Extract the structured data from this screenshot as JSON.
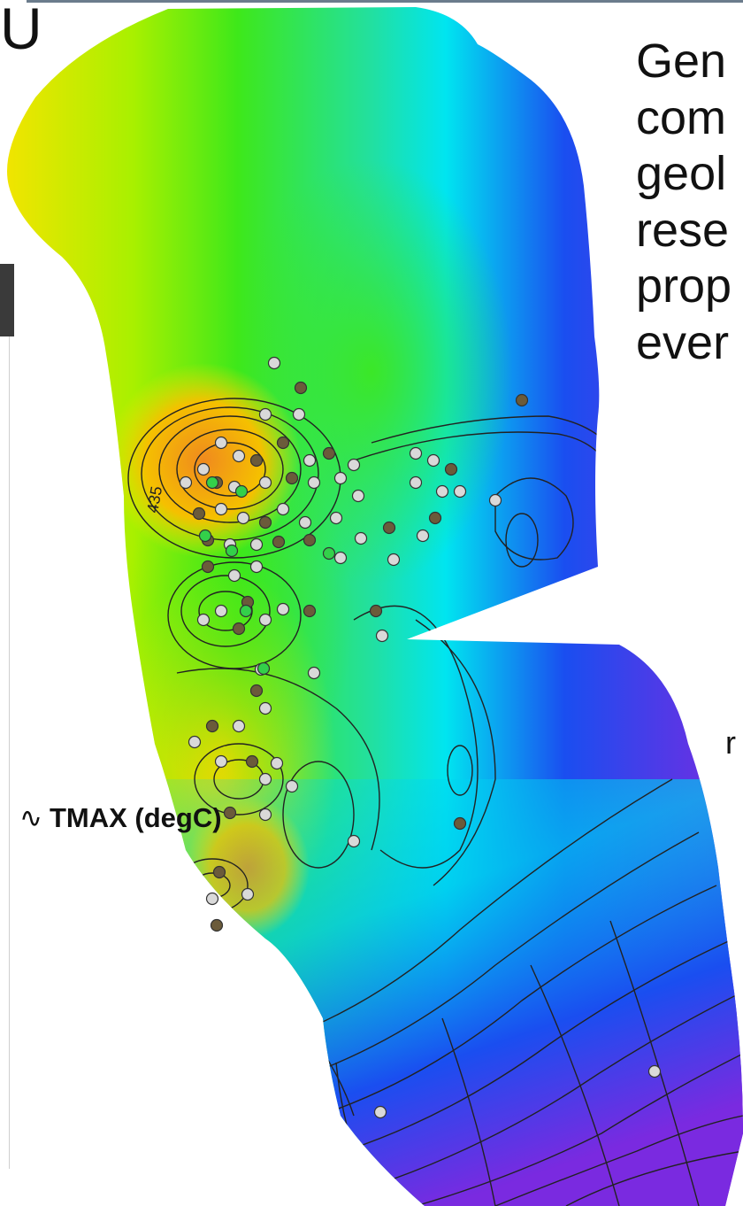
{
  "slide_title_fragment": "U",
  "body_text_lines": [
    "Gen",
    "com",
    "geol",
    "rese",
    "prop",
    "ever"
  ],
  "side_fragment": "r",
  "contour_label": "435",
  "legend": {
    "symbol": "∿",
    "label": "TMAX (degC)"
  },
  "colors": {
    "warm_high": "#f08a1e",
    "yellow": "#f5e400",
    "green": "#3ee81a",
    "cyan": "#00e5f0",
    "blue": "#1a4ef0",
    "violet": "#7a2ae0",
    "well_fill_light": "#d9d9d9",
    "well_fill_green": "#33d04a"
  }
}
